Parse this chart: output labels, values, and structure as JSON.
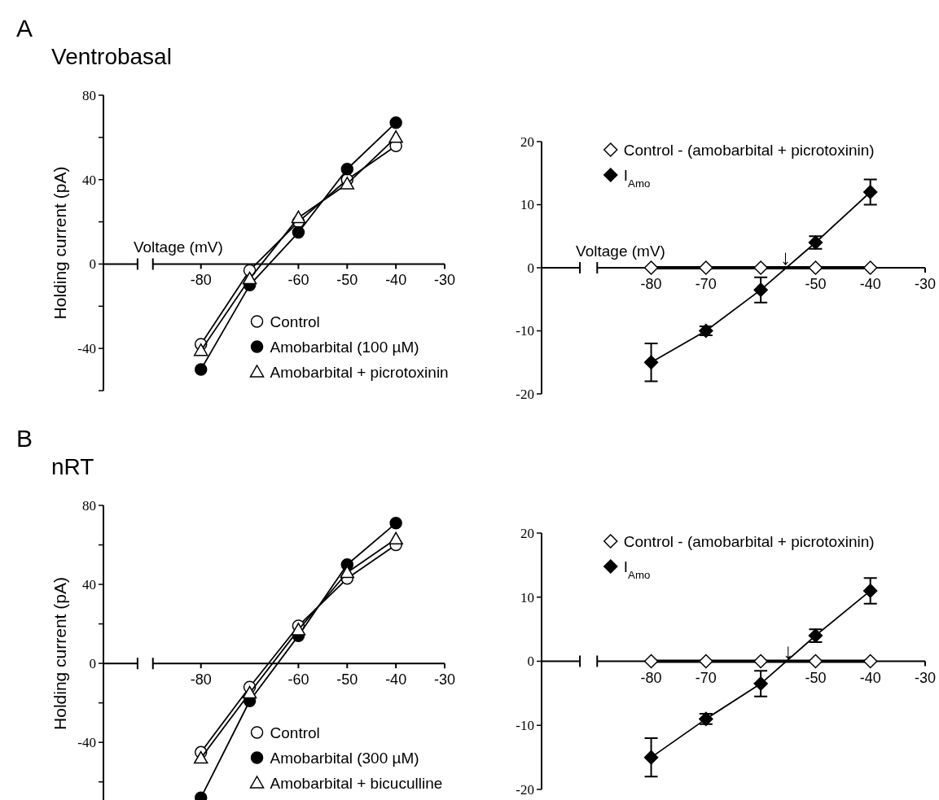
{
  "chart_data": [
    {
      "type": "line",
      "title": "Ventrobasal",
      "annotations": [
        "A"
      ],
      "xlabel": "Voltage (mV)",
      "ylabel": "Holding current (pA)",
      "x": [
        -80,
        -70,
        -60,
        -50,
        -40
      ],
      "xlim": [
        -100,
        -30
      ],
      "xticks": [
        -80,
        -60,
        -50,
        -40,
        -30
      ],
      "ylim": [
        -60,
        80
      ],
      "yticks": [
        {
          "value": -60,
          "label": null
        },
        -40,
        {
          "value": -20,
          "label": null
        },
        0,
        {
          "value": 20,
          "label": null
        },
        40,
        {
          "value": 60,
          "label": null
        },
        80
      ],
      "legend": "bottom right",
      "line_style": "solid",
      "series": [
        {
          "name": "Control",
          "color": "#ffffff",
          "marker": "circle",
          "values": [
            -38,
            -3,
            20,
            40,
            56
          ]
        },
        {
          "name": "Amobarbital (100 µM)",
          "color": "#000000",
          "marker": "circle",
          "values": [
            -50,
            -10,
            15,
            45,
            67
          ]
        },
        {
          "name": "Amobarbital + picrotoxinin",
          "color": "#ffffff",
          "marker": "triangle",
          "values": [
            -41,
            -7,
            22,
            38,
            60
          ]
        }
      ]
    },
    {
      "type": "line",
      "xlabel": "Voltage (mV)",
      "annotations": [
        {
          "text": "↓",
          "x": -55.5,
          "y": 0
        }
      ],
      "x": [
        -80,
        -70,
        -60,
        -50,
        -40
      ],
      "xlim": [
        -100,
        -30
      ],
      "xticks": [
        -80,
        -70,
        -50,
        -40,
        -30
      ],
      "ylim": [
        -20,
        20
      ],
      "yticks": [
        -20,
        -10,
        0,
        10,
        20
      ],
      "legend": "top right",
      "line_style": "solid",
      "series": [
        {
          "name": "Control - (amobarbital + picrotoxinin)",
          "color": "#ffffff",
          "marker": "diamond",
          "values": [
            0,
            0,
            0,
            0,
            0
          ]
        },
        {
          "name": "I$_{Amo}$",
          "color": "#000000",
          "marker": "diamond",
          "values": [
            -15,
            -10,
            -3.5,
            4,
            12
          ],
          "errors": [
            [
              -18,
              -12
            ],
            [
              -10.7,
              -9.3
            ],
            [
              -5.5,
              -1.5
            ],
            [
              3,
              5
            ],
            [
              10,
              14
            ]
          ]
        }
      ]
    },
    {
      "type": "line",
      "title": "nRT",
      "annotations": [
        "B"
      ],
      "ylabel": "Holding current (pA)",
      "x": [
        -80,
        -70,
        -60,
        -50,
        -40
      ],
      "xlim": [
        -100,
        -30
      ],
      "xticks": [
        -80,
        -60,
        -50,
        -40,
        -30
      ],
      "ylim": [
        -70,
        80
      ],
      "yticks": [
        {
          "value": -60,
          "label": null
        },
        -40,
        {
          "value": -20,
          "label": null
        },
        0,
        {
          "value": 20,
          "label": null
        },
        40,
        {
          "value": 60,
          "label": null
        },
        80
      ],
      "legend": "bottom right",
      "line_style": "solid",
      "series": [
        {
          "name": "Control",
          "color": "#ffffff",
          "marker": "circle",
          "values": [
            -45,
            -12,
            19,
            43,
            60
          ]
        },
        {
          "name": "Amobarbital (300 µM)",
          "color": "#000000",
          "marker": "circle",
          "values": [
            -68,
            -19,
            14,
            50,
            71
          ]
        },
        {
          "name": "Amobarbital + bicuculline",
          "color": "#ffffff",
          "marker": "triangle",
          "values": [
            -48,
            -15,
            17,
            46,
            63
          ]
        }
      ]
    },
    {
      "type": "line",
      "annotations": [
        {
          "text": "↓",
          "x": -55,
          "y": 0
        }
      ],
      "x": [
        -80,
        -70,
        -60,
        -50,
        -40
      ],
      "xlim": [
        -100,
        -30
      ],
      "xticks": [
        -80,
        -70,
        -50,
        -40,
        -30
      ],
      "ylim": [
        -20,
        20
      ],
      "yticks": [
        -20,
        -10,
        0,
        10,
        20
      ],
      "legend": "top right",
      "line_style": "solid",
      "series": [
        {
          "name": "Control - (amobarbital + picrotoxinin)",
          "color": "#ffffff",
          "marker": "diamond",
          "values": [
            0,
            0,
            0,
            0,
            0
          ]
        },
        {
          "name": "I$_{Amo}$",
          "color": "#000000",
          "marker": "diamond",
          "values": [
            -15,
            -9,
            -3.5,
            4,
            11
          ],
          "errors": [
            [
              -18,
              -12
            ],
            [
              -9.8,
              -8.2
            ],
            [
              -5.5,
              -1.5
            ],
            [
              3,
              5
            ],
            [
              9,
              13
            ]
          ]
        }
      ]
    }
  ]
}
